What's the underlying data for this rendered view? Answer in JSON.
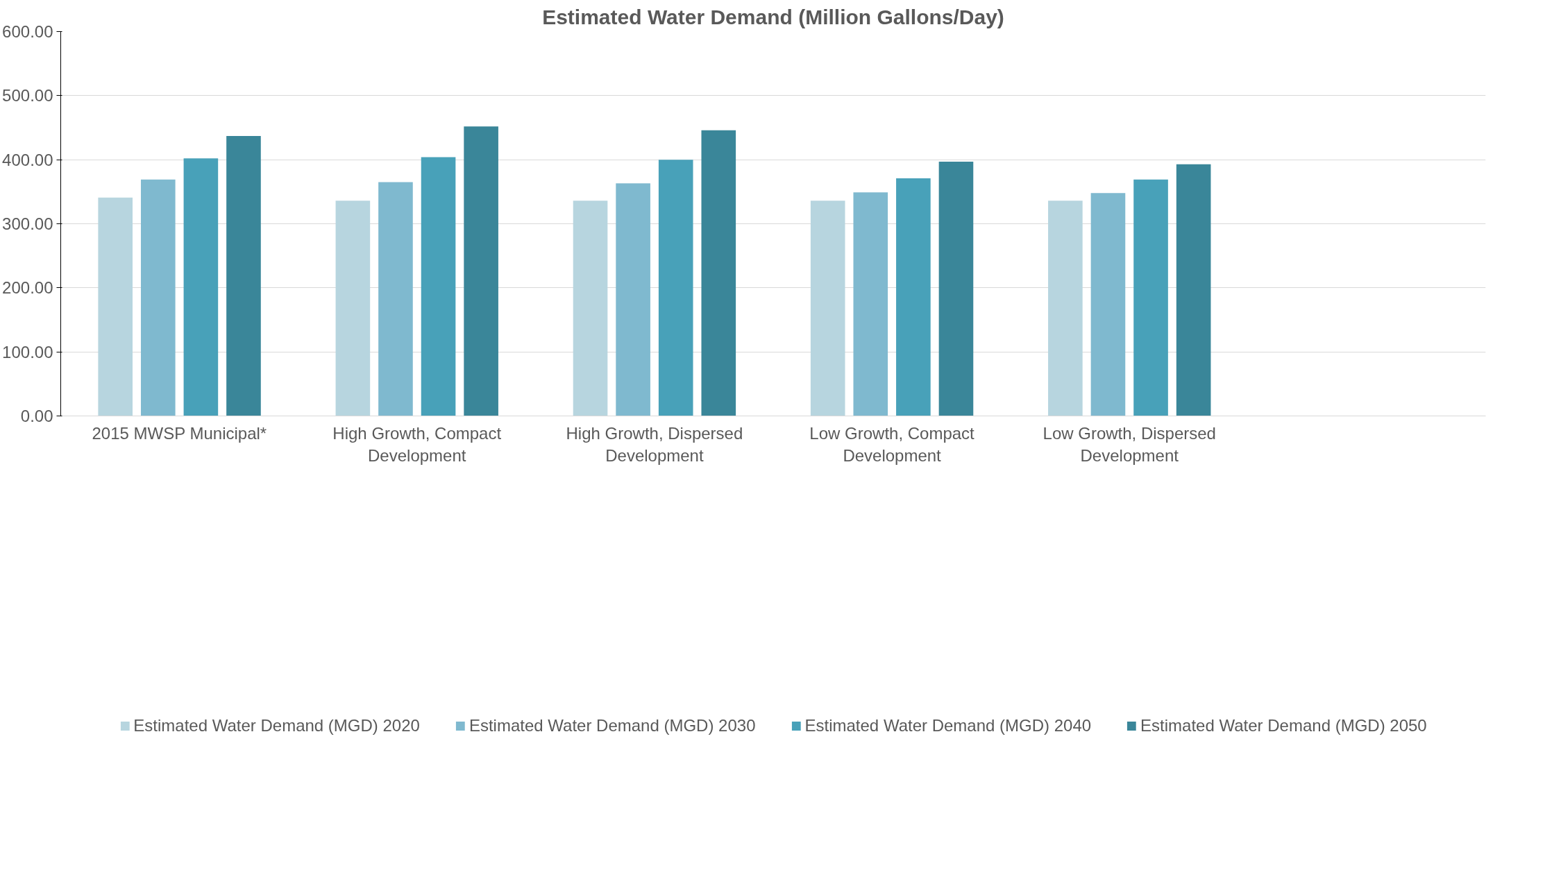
{
  "chart_data": {
    "type": "bar",
    "title": "Estimated Water Demand (Million Gallons/Day)",
    "categories": [
      "2015 MWSP Municipal*",
      "High Growth, Compact Development",
      "High Growth, Dispersed Development",
      "Low Growth, Compact Development",
      "Low Growth, Dispersed Development",
      null
    ],
    "series": [
      {
        "name": "Estimated Water Demand (MGD) 2020",
        "color": "#b7d5df",
        "values": [
          341,
          336,
          336,
          336,
          336,
          null
        ]
      },
      {
        "name": "Estimated Water Demand (MGD) 2030",
        "color": "#7fb9cf",
        "values": [
          369,
          365,
          363,
          349,
          348,
          null
        ]
      },
      {
        "name": "Estimated Water Demand (MGD) 2040",
        "color": "#48a1b9",
        "values": [
          402,
          404,
          400,
          371,
          369,
          null
        ]
      },
      {
        "name": "Estimated Water Demand (MGD) 2050",
        "color": "#3a8699",
        "values": [
          437,
          452,
          446,
          397,
          393,
          null
        ]
      }
    ],
    "ylim": [
      0,
      600
    ],
    "yticks": [
      {
        "value": 0,
        "label": "0.00"
      },
      {
        "value": 100,
        "label": "100.00"
      },
      {
        "value": 200,
        "label": "200.00"
      },
      {
        "value": 300,
        "label": "300.00"
      },
      {
        "value": 400,
        "label": "400.00"
      },
      {
        "value": 500,
        "label": "500.00"
      },
      {
        "value": 600,
        "label": "600.00"
      }
    ],
    "grid": "y",
    "legend": "bottom"
  }
}
